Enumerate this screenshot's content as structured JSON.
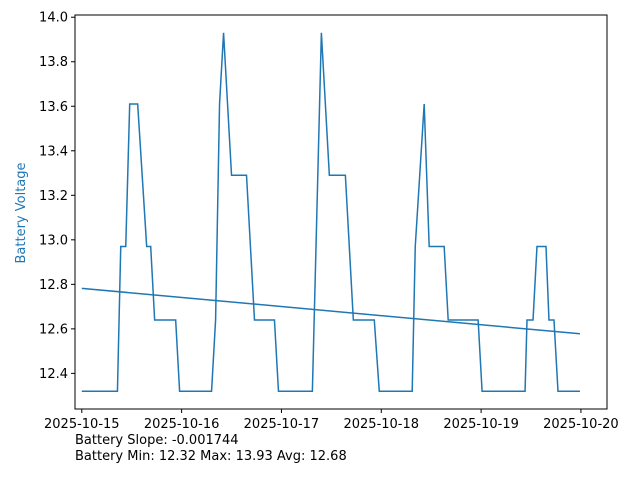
{
  "chart_data": {
    "type": "line",
    "ylabel": "Battery Voltage",
    "xlabel": "",
    "title": "",
    "colors": {
      "series": "#1f77b4",
      "ylabel": "#1f77b4",
      "axes": "#000000"
    },
    "grid": false,
    "legend": "none",
    "xlim": [
      "2025-10-14 22:22",
      "2025-10-20 06:16"
    ],
    "ylim": [
      12.24,
      14.01
    ],
    "x_ticks": [
      "2025-10-15",
      "2025-10-16",
      "2025-10-17",
      "2025-10-18",
      "2025-10-19",
      "2025-10-20"
    ],
    "y_ticks": [
      "12.4",
      "12.6",
      "12.8",
      "13.0",
      "13.2",
      "13.4",
      "13.6",
      "13.8",
      "14.0"
    ],
    "series": [
      {
        "points": [
          [
            "2025-10-15 00:00",
            12.32
          ],
          [
            "2025-10-15 08:34",
            12.32
          ],
          [
            "2025-10-15 09:22",
            12.97
          ],
          [
            "2025-10-15 10:34",
            12.97
          ],
          [
            "2025-10-15 11:31",
            13.61
          ],
          [
            "2025-10-15 13:26",
            13.61
          ],
          [
            "2025-10-15 15:36",
            12.97
          ],
          [
            "2025-10-15 16:34",
            12.97
          ],
          [
            "2025-10-15 17:31",
            12.64
          ],
          [
            "2025-10-15 22:34",
            12.64
          ],
          [
            "2025-10-15 23:31",
            12.32
          ],
          [
            "2025-10-16 07:12",
            12.32
          ],
          [
            "2025-10-16 08:10",
            12.64
          ],
          [
            "2025-10-16 09:07",
            13.61
          ],
          [
            "2025-10-16 10:05",
            13.93
          ],
          [
            "2025-10-16 12:00",
            13.29
          ],
          [
            "2025-10-16 15:36",
            13.29
          ],
          [
            "2025-10-16 17:31",
            12.64
          ],
          [
            "2025-10-16 22:19",
            12.64
          ],
          [
            "2025-10-16 23:17",
            12.32
          ],
          [
            "2025-10-17 07:26",
            12.32
          ],
          [
            "2025-10-17 09:36",
            13.93
          ],
          [
            "2025-10-17 11:31",
            13.29
          ],
          [
            "2025-10-17 15:22",
            13.29
          ],
          [
            "2025-10-17 17:17",
            12.64
          ],
          [
            "2025-10-17 22:19",
            12.64
          ],
          [
            "2025-10-17 23:31",
            12.32
          ],
          [
            "2025-10-18 07:26",
            12.32
          ],
          [
            "2025-10-18 08:10",
            12.97
          ],
          [
            "2025-10-18 10:19",
            13.61
          ],
          [
            "2025-10-18 11:31",
            12.97
          ],
          [
            "2025-10-18 15:07",
            12.97
          ],
          [
            "2025-10-18 16:05",
            12.64
          ],
          [
            "2025-10-18 23:17",
            12.64
          ],
          [
            "2025-10-19 00:14",
            12.32
          ],
          [
            "2025-10-19 10:34",
            12.32
          ],
          [
            "2025-10-19 11:02",
            12.64
          ],
          [
            "2025-10-19 12:29",
            12.64
          ],
          [
            "2025-10-19 13:26",
            12.97
          ],
          [
            "2025-10-19 15:36",
            12.97
          ],
          [
            "2025-10-19 16:19",
            12.64
          ],
          [
            "2025-10-19 17:31",
            12.64
          ],
          [
            "2025-10-19 18:29",
            12.32
          ],
          [
            "2025-10-19 23:46",
            12.32
          ]
        ]
      },
      {
        "points": [
          [
            "2025-10-15 00:00",
            12.782
          ],
          [
            "2025-10-19 23:46",
            12.578
          ]
        ]
      }
    ]
  },
  "stats": {
    "slope_text": "Battery Slope: -0.001744",
    "range_text": "Battery Min: 12.32 Max: 13.93 Avg: 12.68"
  }
}
